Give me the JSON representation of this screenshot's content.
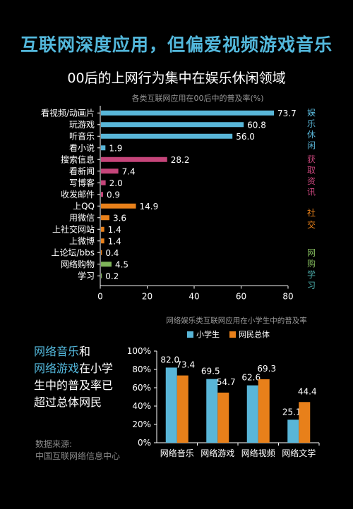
{
  "header": {
    "title": "互联网深度应用，但偏爱视频游戏音乐",
    "subtitle": "00后的上网行为集中在娱乐休闲领域"
  },
  "side_note": {
    "part1": "网络音乐",
    "part2": "和",
    "part3": "网络游戏",
    "part4": "在小学生中的普及率已超过总体网民"
  },
  "source": {
    "line1": "数据来源:",
    "line2": "中国互联网络信息中心"
  },
  "colors": {
    "blue": "#59b6d8",
    "pink": "#c5457a",
    "orange": "#e8801a",
    "green": "#7fb45a"
  },
  "chart_data": [
    {
      "type": "bar",
      "orientation": "horizontal",
      "title": "各类互联网应用在00后中的普及率(%)",
      "categories": [
        "看视频/动画片",
        "玩游戏",
        "听音乐",
        "看小说",
        "搜索信息",
        "看新闻",
        "写博客",
        "收发邮件",
        "上QQ",
        "用微信",
        "上社交网站",
        "上微博",
        "上论坛/bbs",
        "网络购物",
        "学习"
      ],
      "values": [
        73.7,
        60.8,
        56.0,
        1.9,
        28.2,
        7.4,
        2.0,
        0.9,
        14.9,
        3.6,
        1.4,
        1.4,
        0.4,
        4.5,
        0.2
      ],
      "value_labels": [
        "73.7",
        "60.8",
        "56.0",
        "1.9",
        "28.2",
        "7.4",
        "2.0",
        "0.9",
        "14.9",
        "3.6",
        "1.4",
        "1.4",
        "0.4",
        "4.5",
        "0.2"
      ],
      "bar_groups": [
        "blue",
        "blue",
        "blue",
        "blue",
        "pink",
        "pink",
        "pink",
        "pink",
        "orange",
        "orange",
        "orange",
        "orange",
        "orange",
        "green",
        "green"
      ],
      "groups": [
        {
          "label": "娱乐休闲",
          "color": "blue",
          "rows": [
            0,
            3
          ]
        },
        {
          "label": "获取资讯",
          "color": "pink",
          "rows": [
            4,
            7
          ]
        },
        {
          "label": "社交",
          "color": "orange",
          "rows": [
            8,
            12
          ]
        },
        {
          "label": "网购学习",
          "color": "green",
          "rows": [
            13,
            14
          ]
        }
      ],
      "xlim": [
        0,
        80
      ],
      "xticks": [
        "0",
        "20",
        "40",
        "60",
        "80"
      ]
    },
    {
      "type": "bar",
      "title": "网络娱乐类互联网应用在小学生中的普及率",
      "categories": [
        "网络音乐",
        "网络游戏",
        "网络视频",
        "网络文学"
      ],
      "series": [
        {
          "name": "小学生",
          "color": "blue",
          "values": [
            82.0,
            69.5,
            62.6,
            25.1
          ],
          "labels": [
            "82.0",
            "69.5",
            "62.6",
            "25.1"
          ]
        },
        {
          "name": "网民总体",
          "color": "orange",
          "values": [
            73.4,
            54.7,
            69.3,
            44.4
          ],
          "labels": [
            "73.4",
            "54.7",
            "69.3",
            "44.4"
          ]
        }
      ],
      "ylim": [
        0,
        100
      ],
      "yticks": [
        "0%",
        "20%",
        "40%",
        "60%",
        "80%",
        "100%"
      ],
      "legend": "top"
    }
  ]
}
